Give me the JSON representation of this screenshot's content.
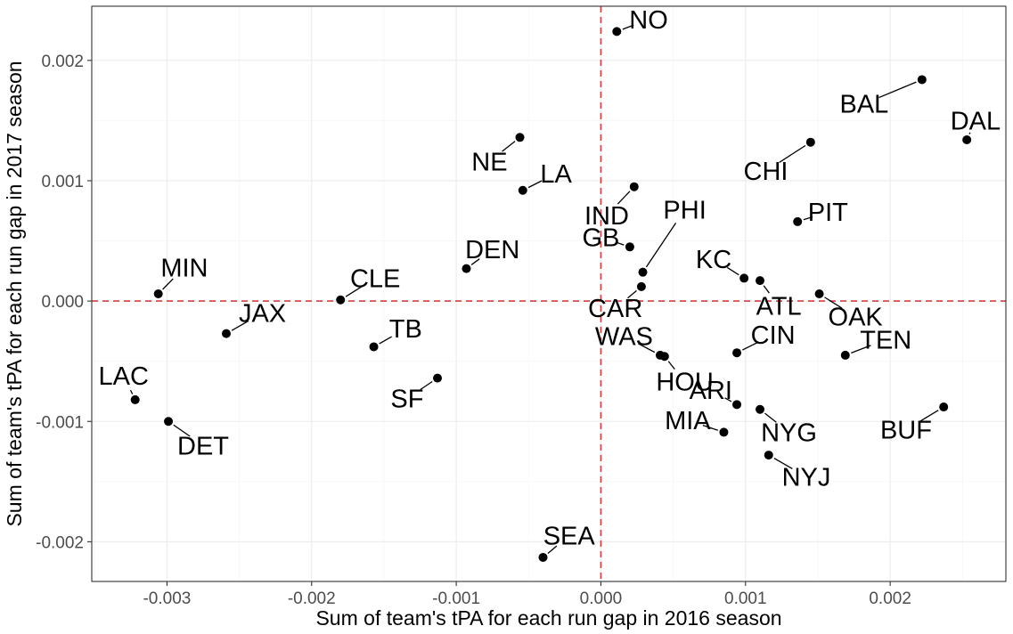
{
  "chart_data": {
    "type": "scatter",
    "title": "",
    "xlabel": "Sum of team's tPA for each run gap in 2016 season",
    "ylabel": "Sum of team's tPA for each run gap in 2017 season",
    "xlim": [
      -0.00352,
      0.0028
    ],
    "ylim": [
      -0.00233,
      0.00245
    ],
    "x_ticks": [
      -0.003,
      -0.002,
      -0.001,
      0.0,
      0.001,
      0.002
    ],
    "x_tick_labels": [
      "-0.003",
      "-0.002",
      "-0.001",
      "0.000",
      "0.001",
      "0.002"
    ],
    "y_ticks": [
      -0.002,
      -0.001,
      0.0,
      0.001,
      0.002
    ],
    "y_tick_labels": [
      "-0.002",
      "-0.001",
      "0.000",
      "0.001",
      "0.002"
    ],
    "grid": true,
    "reference_lines": {
      "x": 0.0,
      "y": 0.0,
      "color": "#e0393b",
      "style": "dashed"
    },
    "point_color": "#000000",
    "points": [
      {
        "label": "NO",
        "x": 0.00011,
        "y": 0.00224,
        "label_dx": 0.00022,
        "label_dy": 0.0001
      },
      {
        "label": "BAL",
        "x": 0.00222,
        "y": 0.00184,
        "label_dx": -0.0004,
        "label_dy": -0.0002
      },
      {
        "label": "DAL",
        "x": 0.00253,
        "y": 0.00134,
        "label_dx": 6e-05,
        "label_dy": 0.00016
      },
      {
        "label": "NE",
        "x": -0.00056,
        "y": 0.00136,
        "label_dx": -0.00021,
        "label_dy": -0.0002
      },
      {
        "label": "CHI",
        "x": 0.00145,
        "y": 0.00132,
        "label_dx": -0.00031,
        "label_dy": -0.00024
      },
      {
        "label": "LA",
        "x": -0.00054,
        "y": 0.00092,
        "label_dx": 0.00023,
        "label_dy": 0.00014
      },
      {
        "label": "IND",
        "x": 0.00023,
        "y": 0.00095,
        "label_dx": -0.00019,
        "label_dy": -0.00024
      },
      {
        "label": "PIT",
        "x": 0.00136,
        "y": 0.00066,
        "label_dx": 0.00021,
        "label_dy": 8e-05
      },
      {
        "label": "GB",
        "x": 0.0002,
        "y": 0.00045,
        "label_dx": -0.0002,
        "label_dy": 8e-05
      },
      {
        "label": "PHI",
        "x": 0.00029,
        "y": 0.00024,
        "label_dx": 0.00029,
        "label_dy": 0.00052
      },
      {
        "label": "DEN",
        "x": -0.00093,
        "y": 0.00027,
        "label_dx": 0.00018,
        "label_dy": 0.00016
      },
      {
        "label": "MIN",
        "x": -0.00306,
        "y": 6e-05,
        "label_dx": 0.00018,
        "label_dy": 0.00022
      },
      {
        "label": "CLE",
        "x": -0.0018,
        "y": 1e-05,
        "label_dx": 0.00024,
        "label_dy": 0.00018
      },
      {
        "label": "KC",
        "x": 0.00099,
        "y": 0.00019,
        "label_dx": -0.00021,
        "label_dy": 0.00016
      },
      {
        "label": "ATL",
        "x": 0.0011,
        "y": 0.00017,
        "label_dx": 0.00013,
        "label_dy": -0.00021
      },
      {
        "label": "OAK",
        "x": 0.00151,
        "y": 6e-05,
        "label_dx": 0.00025,
        "label_dy": -0.00019
      },
      {
        "label": "CAR",
        "x": 0.00028,
        "y": 0.00012,
        "label_dx": -0.00018,
        "label_dy": -0.00018
      },
      {
        "label": "JAX",
        "x": -0.00259,
        "y": -0.00027,
        "label_dx": 0.00025,
        "label_dy": 0.00017
      },
      {
        "label": "TB",
        "x": -0.00157,
        "y": -0.00038,
        "label_dx": 0.00022,
        "label_dy": 0.00015
      },
      {
        "label": "WAS",
        "x": 0.00041,
        "y": -0.00045,
        "label_dx": -0.00025,
        "label_dy": 0.00016
      },
      {
        "label": "HOU",
        "x": 0.00044,
        "y": -0.00046,
        "label_dx": 0.00014,
        "label_dy": -0.00021
      },
      {
        "label": "CIN",
        "x": 0.00094,
        "y": -0.00043,
        "label_dx": 0.00025,
        "label_dy": 0.00015
      },
      {
        "label": "TEN",
        "x": 0.00169,
        "y": -0.00045,
        "label_dx": 0.00028,
        "label_dy": 0.00013
      },
      {
        "label": "SF",
        "x": -0.00113,
        "y": -0.00064,
        "label_dx": -0.00021,
        "label_dy": -0.00017
      },
      {
        "label": "LAC",
        "x": -0.00322,
        "y": -0.00082,
        "label_dx": -8e-05,
        "label_dy": 0.0002
      },
      {
        "label": "ARI",
        "x": 0.00094,
        "y": -0.00086,
        "label_dx": -0.00018,
        "label_dy": 0.00012
      },
      {
        "label": "NYG",
        "x": 0.0011,
        "y": -0.0009,
        "label_dx": 0.0002,
        "label_dy": -0.00019
      },
      {
        "label": "BUF",
        "x": 0.00237,
        "y": -0.00088,
        "label_dx": -0.00026,
        "label_dy": -0.00019
      },
      {
        "label": "DET",
        "x": -0.00299,
        "y": -0.001,
        "label_dx": 0.00024,
        "label_dy": -0.0002
      },
      {
        "label": "MIA",
        "x": 0.00085,
        "y": -0.00109,
        "label_dx": -0.00025,
        "label_dy": 0.0001
      },
      {
        "label": "NYJ",
        "x": 0.00116,
        "y": -0.00128,
        "label_dx": 0.00026,
        "label_dy": -0.00018
      },
      {
        "label": "SEA",
        "x": -0.0004,
        "y": -0.00213,
        "label_dx": 0.00018,
        "label_dy": 0.00018
      }
    ]
  }
}
